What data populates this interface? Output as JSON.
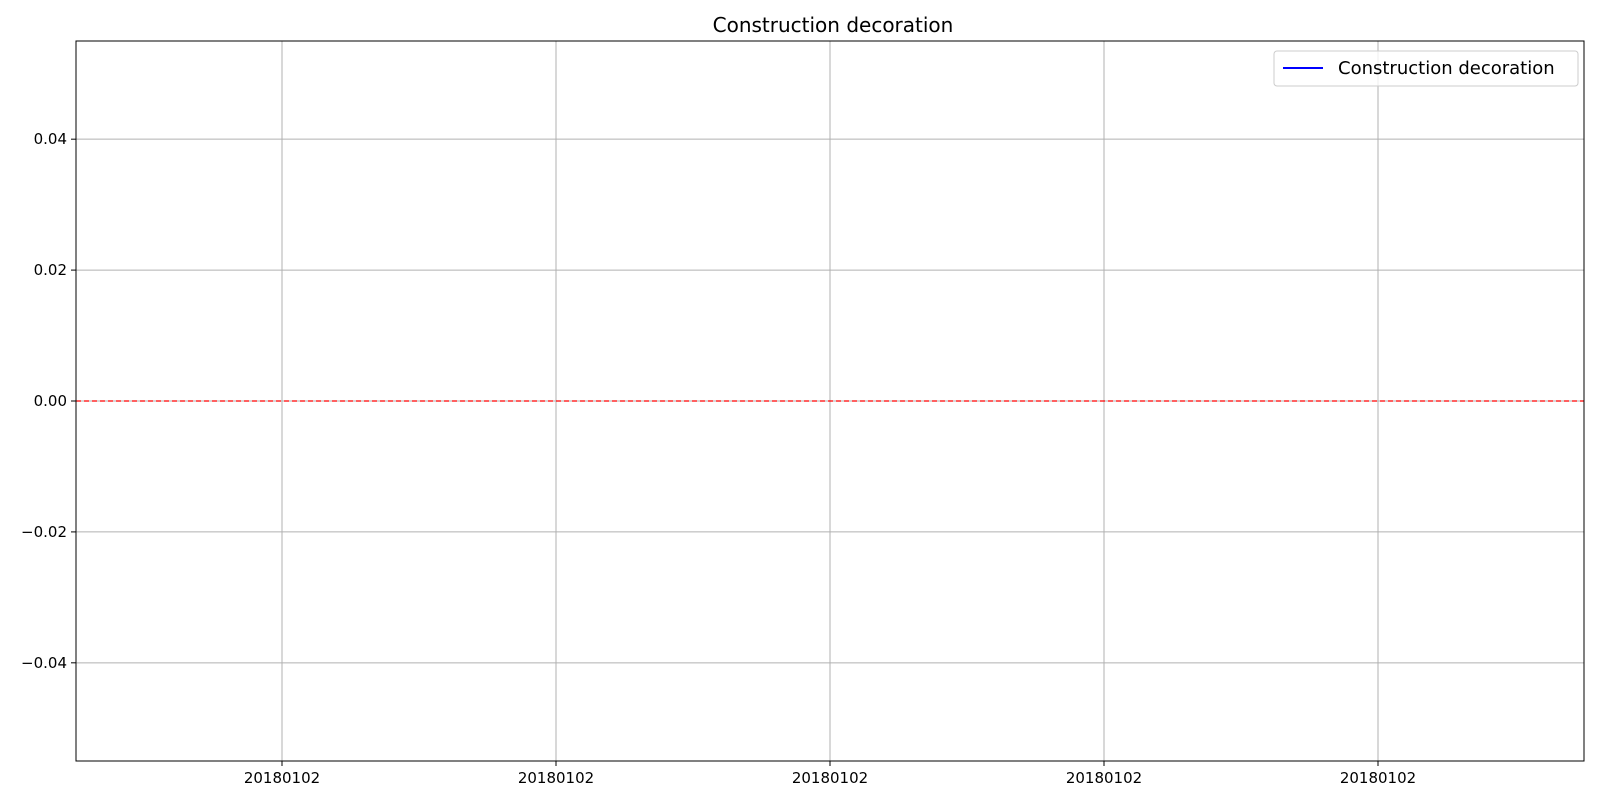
{
  "chart_data": {
    "type": "line",
    "title": "Construction decoration",
    "xlabel": "",
    "ylabel": "",
    "x_tick_labels": [
      "20180102",
      "20180102",
      "20180102",
      "20180102",
      "20180102"
    ],
    "y_ticks": [
      -0.04,
      -0.02,
      0.0,
      0.02,
      0.04
    ],
    "y_tick_labels": [
      "−0.04",
      "−0.02",
      "0.00",
      "0.02",
      "0.04"
    ],
    "ylim": [
      -0.055,
      0.055
    ],
    "grid": true,
    "legend_position": "top-right",
    "series": [
      {
        "name": "Construction decoration",
        "color": "#0000ff",
        "x": [],
        "values": []
      }
    ],
    "reference_line": {
      "y": 0.0,
      "color": "#ff0000",
      "style": "dashed"
    }
  }
}
